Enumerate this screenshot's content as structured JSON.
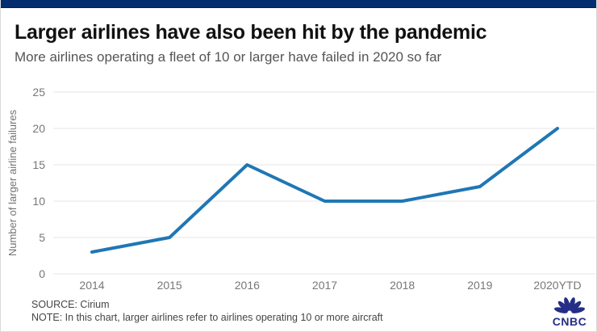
{
  "header": {
    "title": "Larger airlines have also been hit by the pandemic",
    "subtitle": "More airlines operating a fleet of 10 or larger have failed in 2020 so far"
  },
  "chart_data": {
    "type": "line",
    "categories": [
      "2014",
      "2015",
      "2016",
      "2017",
      "2018",
      "2019",
      "2020YTD"
    ],
    "values": [
      3,
      5,
      15,
      10,
      10,
      12,
      20
    ],
    "series_name": "Number of larger airline failures",
    "xlabel": "",
    "ylabel": "Number of larger airline failures",
    "ylim": [
      0,
      25
    ],
    "yticks": [
      0,
      5,
      10,
      15,
      20,
      25
    ],
    "grid": true,
    "legend": "none",
    "line_color": "#1f77b4",
    "gridline_color": "#e4e4e4",
    "tick_color": "#777777",
    "axis_label_color": "#737373"
  },
  "footer": {
    "source": "SOURCE: Cirium",
    "note": "NOTE: In this chart, larger airlines refer to airlines operating 10 or more aircraft"
  },
  "logo": {
    "text": "CNBC",
    "color": "#252e86"
  },
  "colors": {
    "top_bar": "#032d6e",
    "title": "#111111",
    "subtitle": "#555555",
    "footer_text": "#454545"
  }
}
